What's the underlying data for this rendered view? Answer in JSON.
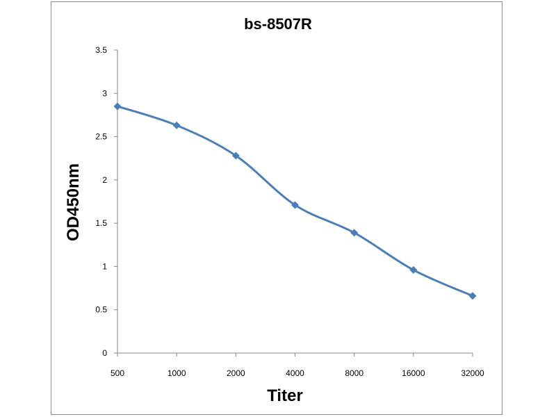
{
  "chart_data": {
    "type": "line",
    "title": "bs-8507R",
    "xlabel": "Titer",
    "ylabel": "OD450nm",
    "categories": [
      "500",
      "1000",
      "2000",
      "4000",
      "8000",
      "16000",
      "32000"
    ],
    "series": [
      {
        "values": [
          2.85,
          2.63,
          2.28,
          1.71,
          1.39,
          0.96,
          0.66
        ]
      }
    ],
    "yticks": [
      "0",
      "0.5",
      "1",
      "1.5",
      "2",
      "2.5",
      "3",
      "3.5"
    ],
    "ylim": [
      0,
      3.5
    ],
    "grid": false,
    "legend": "none",
    "marker": "diamond",
    "smooth": true,
    "colors": {
      "line": "#4a7ebb",
      "marker": "#4a7ebb",
      "axis": "#868686",
      "text": "#000000"
    }
  }
}
